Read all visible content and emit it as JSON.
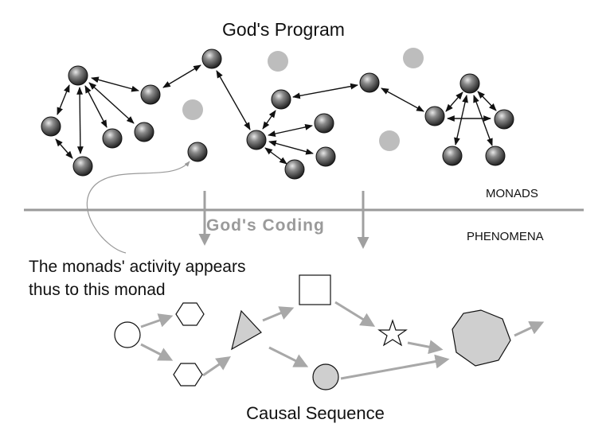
{
  "title": "God's Program",
  "labels": {
    "monads": "MONADS",
    "phenomena": "PHENOMENA",
    "coding": "God's Coding",
    "callout_line1": "The monads' activity appears",
    "callout_line2": "thus to this monad",
    "causal": "Causal Sequence"
  },
  "colors": {
    "monad_dark": "#2b2b2b",
    "monad_light": "#bdbdbd",
    "divider": "#9a9a9a",
    "coding_arrow": "#a0a0a0",
    "phenomena_arrow": "#a8a8a8",
    "shape_fill_grey": "#cfcfcf",
    "shape_fill_white": "#ffffff"
  },
  "nodes": {
    "dark_monad_count": 20,
    "light_monad_count": 4
  },
  "phenomena_shapes": [
    "circle",
    "hexagon",
    "hexagon",
    "triangle",
    "square",
    "circle",
    "star",
    "heptagon"
  ]
}
